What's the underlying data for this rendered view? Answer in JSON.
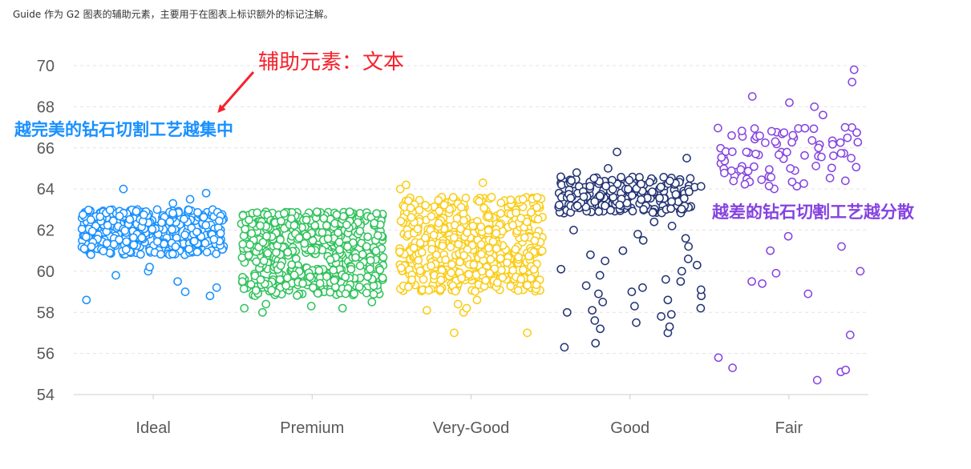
{
  "intro_text": "Guide 作为 G2 图表的辅助元素，主要用于在图表上标识额外的标记注解。",
  "colors": {
    "ideal": "#1890ff",
    "premium": "#2fc25b",
    "very_good": "#facc14",
    "good": "#223273",
    "fair": "#8543e0",
    "annotation_title": "#f5222d",
    "annotation_arrow": "#f5222d",
    "axis": "#cccccc",
    "grid": "#e3e3e3"
  },
  "annotations": {
    "title": "辅助元素：文本",
    "ideal_text": "越完美的钻石切割工艺越集中",
    "fair_text": "越差的钻石切割工艺越分散"
  },
  "chart_data": {
    "type": "scatter",
    "title": "",
    "xlabel": "",
    "ylabel": "",
    "categories": [
      "Ideal",
      "Premium",
      "Very-Good",
      "Good",
      "Fair"
    ],
    "y_ticks": [
      "54",
      "56",
      "58",
      "60",
      "62",
      "64",
      "66",
      "68",
      "70"
    ],
    "ylim": [
      54,
      70
    ],
    "grid": true,
    "series": [
      {
        "category": "Ideal",
        "color_key": "ideal",
        "distribution": {
          "count": 380,
          "core_low": 60.8,
          "core_high": 63.0,
          "outliers": [
            63.8,
            64.0,
            63.3,
            59.2,
            58.8,
            58.6,
            59.5,
            59.8,
            60.0,
            63.5,
            59.0,
            60.2
          ]
        }
      },
      {
        "category": "Premium",
        "color_key": "premium",
        "distribution": {
          "count": 520,
          "core_low": 58.8,
          "core_high": 62.9,
          "outliers": [
            58.2,
            58.3,
            58.4,
            58.0,
            58.5,
            58.2
          ]
        }
      },
      {
        "category": "Very-Good",
        "color_key": "very_good",
        "distribution": {
          "count": 520,
          "core_low": 59.0,
          "core_high": 63.6,
          "outliers": [
            64.3,
            64.0,
            57.0,
            57.0,
            58.0,
            58.2,
            58.4,
            58.6,
            64.2,
            58.1
          ]
        }
      },
      {
        "category": "Good",
        "color_key": "good",
        "distribution": {
          "count": 210,
          "core_low": 62.8,
          "core_high": 64.6,
          "outliers": [
            65.8,
            65.5,
            65.0,
            64.8,
            56.3,
            56.5,
            57.0,
            57.2,
            57.5,
            57.8,
            58.0,
            58.2,
            58.5,
            58.8,
            59.0,
            59.2,
            59.5,
            60.0,
            60.5,
            61.0,
            61.5,
            62.0,
            57.6,
            58.6,
            59.8,
            60.3,
            61.2,
            62.2,
            58.3,
            59.3,
            60.8,
            61.8,
            57.9,
            58.9,
            59.6,
            60.1,
            61.6,
            62.4,
            57.3,
            58.1,
            59.1,
            60.6
          ]
        }
      },
      {
        "category": "Fair",
        "color_key": "fair",
        "distribution": {
          "count": 80,
          "core_low": 64.0,
          "core_high": 67.0,
          "outliers": [
            69.8,
            69.2,
            68.5,
            68.0,
            68.2,
            67.6,
            67.0,
            66.6,
            54.7,
            55.1,
            55.2,
            55.3,
            55.8,
            56.9,
            58.9,
            59.4,
            59.5,
            59.9,
            60.0,
            61.0,
            61.2,
            61.7,
            62.9,
            62.8,
            65.5,
            65.8,
            66.0
          ]
        }
      }
    ]
  }
}
